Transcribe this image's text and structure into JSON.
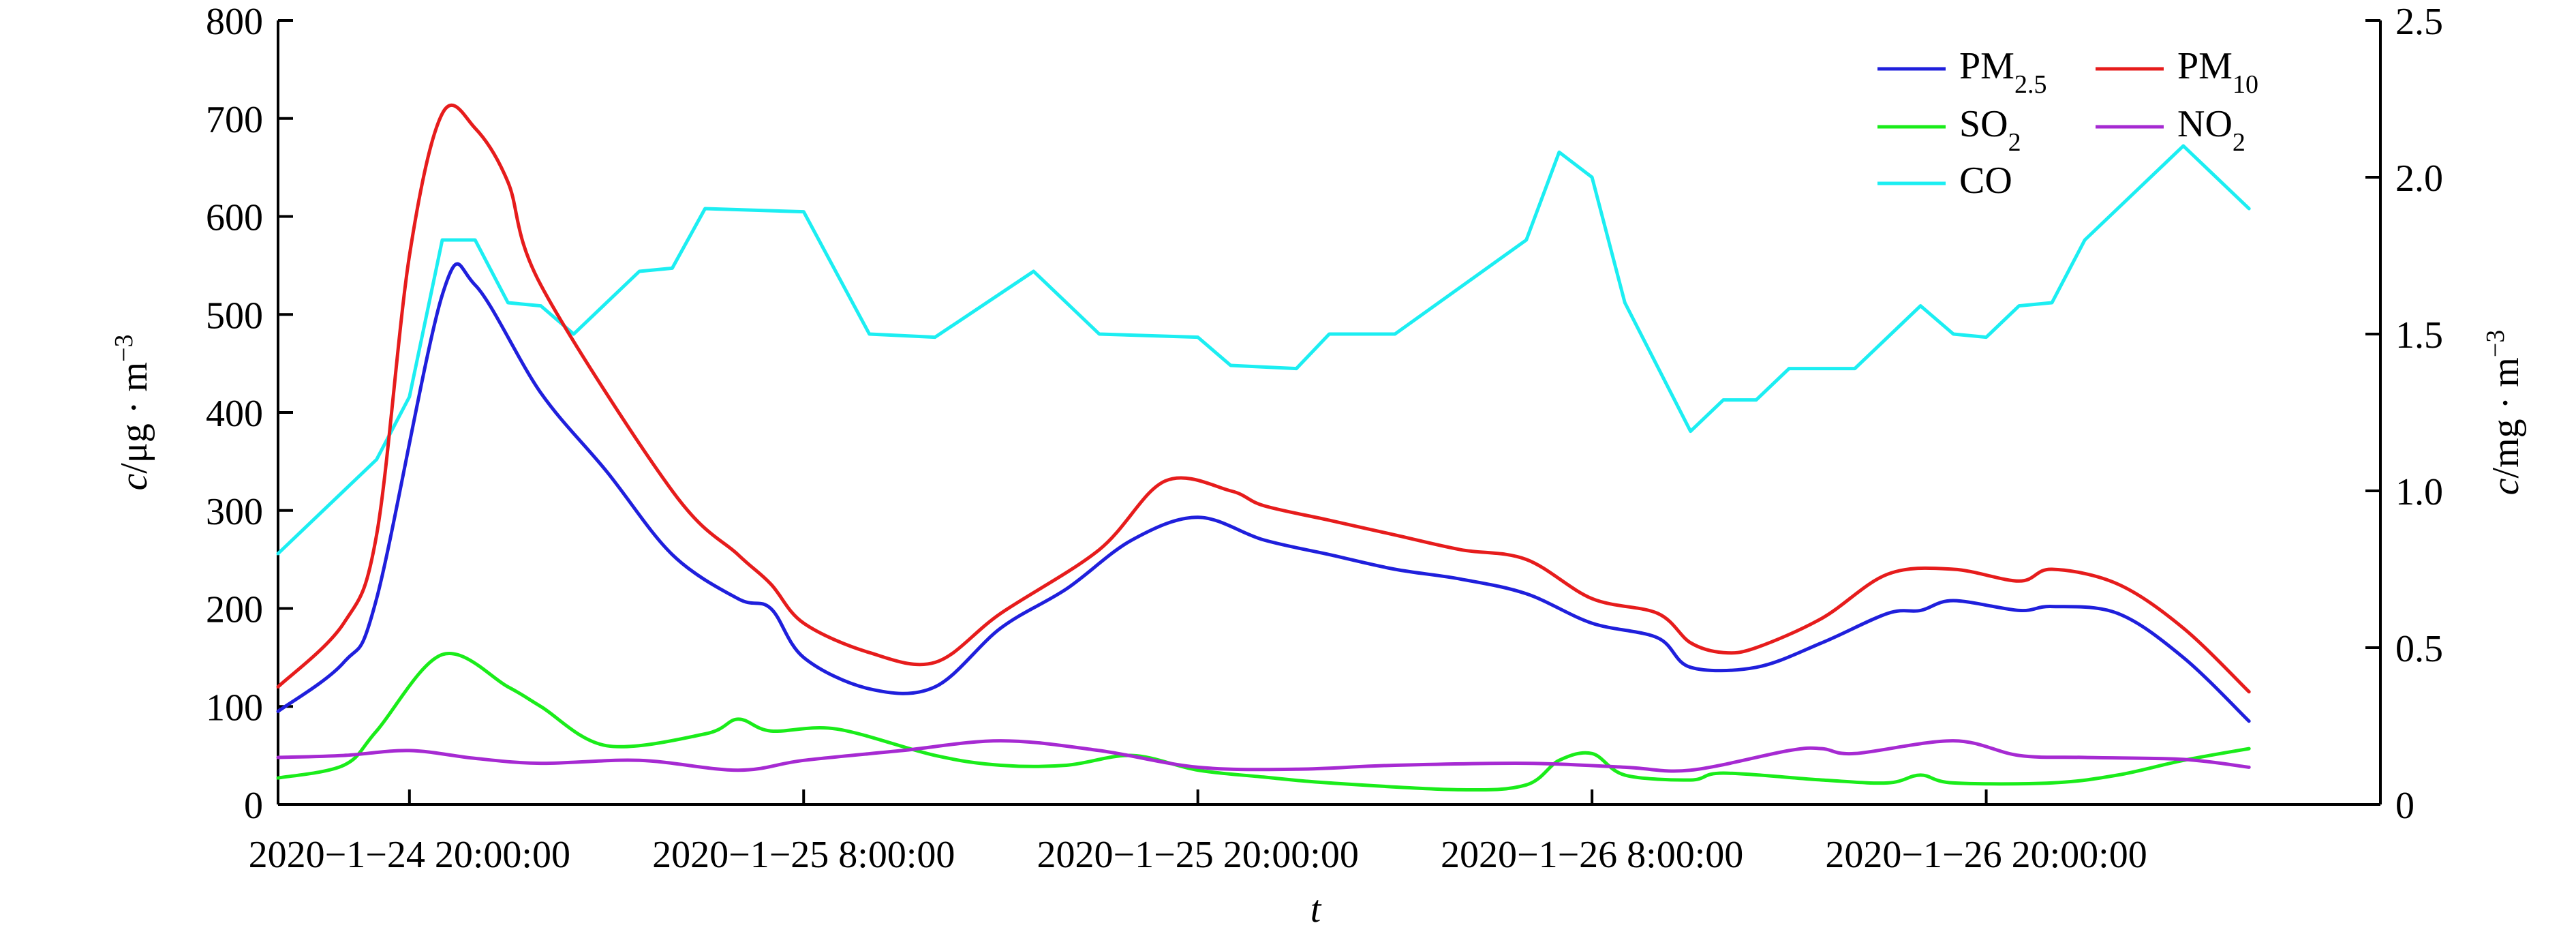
{
  "chart_data": {
    "type": "line",
    "title": "",
    "xlabel": "t",
    "ylabel_left": {
      "prefix": "c",
      "unit": "/μg · m",
      "exp": "−3"
    },
    "ylabel_right": {
      "prefix": "c",
      "unit": "/mg · m",
      "exp": "−3"
    },
    "x_ticks": [
      "2020−1−24 20:00:00",
      "2020−1−25 8:00:00",
      "2020−1−25 20:00:00",
      "2020−1−26 8:00:00",
      "2020−1−26 20:00:00"
    ],
    "x_start": "2020-01-24 16:00:00",
    "x_end": "2020-01-27 08:00:00",
    "left_ylim": [
      0,
      800
    ],
    "left_yticks": [
      "0",
      "100",
      "200",
      "300",
      "400",
      "500",
      "600",
      "700",
      "800"
    ],
    "right_ylim": [
      0,
      2.5
    ],
    "right_yticks": [
      "0",
      "0.5",
      "1.0",
      "1.5",
      "2.0",
      "2.5"
    ],
    "grid": false,
    "legend_position": "top-right",
    "series": [
      {
        "name": "PM2.5",
        "label": "PM",
        "sub": "2.5",
        "color": "#1f1fdc",
        "axis": "left",
        "points": [
          [
            "2020-01-24 16:00",
            95
          ],
          [
            "2020-01-24 18:00",
            145
          ],
          [
            "2020-01-24 19:00",
            210
          ],
          [
            "2020-01-24 21:00",
            520
          ],
          [
            "2020-01-24 22:00",
            530
          ],
          [
            "2020-01-25 00:00",
            420
          ],
          [
            "2020-01-25 02:00",
            340
          ],
          [
            "2020-01-25 04:00",
            255
          ],
          [
            "2020-01-25 06:00",
            210
          ],
          [
            "2020-01-25 07:00",
            200
          ],
          [
            "2020-01-25 08:00",
            150
          ],
          [
            "2020-01-25 10:00",
            118
          ],
          [
            "2020-01-25 12:00",
            120
          ],
          [
            "2020-01-25 14:00",
            180
          ],
          [
            "2020-01-25 16:00",
            220
          ],
          [
            "2020-01-25 18:00",
            270
          ],
          [
            "2020-01-25 20:00",
            293
          ],
          [
            "2020-01-25 22:00",
            270
          ],
          [
            "2020-01-26 00:00",
            255
          ],
          [
            "2020-01-26 02:00",
            240
          ],
          [
            "2020-01-26 04:00",
            230
          ],
          [
            "2020-01-26 06:00",
            215
          ],
          [
            "2020-01-26 08:00",
            185
          ],
          [
            "2020-01-26 10:00",
            170
          ],
          [
            "2020-01-26 11:00",
            140
          ],
          [
            "2020-01-26 13:00",
            140
          ],
          [
            "2020-01-26 15:00",
            165
          ],
          [
            "2020-01-26 17:00",
            195
          ],
          [
            "2020-01-26 18:00",
            198
          ],
          [
            "2020-01-26 19:00",
            208
          ],
          [
            "2020-01-26 21:00",
            198
          ],
          [
            "2020-01-26 22:00",
            202
          ],
          [
            "2020-01-27 00:00",
            195
          ],
          [
            "2020-01-27 02:00",
            150
          ],
          [
            "2020-01-27 04:00",
            85
          ]
        ]
      },
      {
        "name": "PM10",
        "label": "PM",
        "sub": "10",
        "color": "#e61c1c",
        "axis": "left",
        "points": [
          [
            "2020-01-24 16:00",
            120
          ],
          [
            "2020-01-24 18:00",
            185
          ],
          [
            "2020-01-24 19:00",
            275
          ],
          [
            "2020-01-24 20:00",
            560
          ],
          [
            "2020-01-24 21:00",
            705
          ],
          [
            "2020-01-24 22:00",
            690
          ],
          [
            "2020-01-24 23:00",
            635
          ],
          [
            "2020-01-25 00:00",
            530
          ],
          [
            "2020-01-25 04:00",
            320
          ],
          [
            "2020-01-25 06:00",
            255
          ],
          [
            "2020-01-25 07:00",
            225
          ],
          [
            "2020-01-25 08:00",
            185
          ],
          [
            "2020-01-25 10:00",
            155
          ],
          [
            "2020-01-25 12:00",
            145
          ],
          [
            "2020-01-25 14:00",
            195
          ],
          [
            "2020-01-25 17:00",
            260
          ],
          [
            "2020-01-25 19:00",
            330
          ],
          [
            "2020-01-25 21:00",
            320
          ],
          [
            "2020-01-25 22:00",
            305
          ],
          [
            "2020-01-26 00:00",
            290
          ],
          [
            "2020-01-26 02:00",
            275
          ],
          [
            "2020-01-26 04:00",
            260
          ],
          [
            "2020-01-26 06:00",
            250
          ],
          [
            "2020-01-26 08:00",
            210
          ],
          [
            "2020-01-26 10:00",
            195
          ],
          [
            "2020-01-26 11:00",
            165
          ],
          [
            "2020-01-26 12:00",
            155
          ],
          [
            "2020-01-26 13:00",
            160
          ],
          [
            "2020-01-26 15:00",
            190
          ],
          [
            "2020-01-26 17:00",
            235
          ],
          [
            "2020-01-26 19:00",
            240
          ],
          [
            "2020-01-26 21:00",
            228
          ],
          [
            "2020-01-26 22:00",
            240
          ],
          [
            "2020-01-27 00:00",
            225
          ],
          [
            "2020-01-27 02:00",
            180
          ],
          [
            "2020-01-27 04:00",
            115
          ]
        ]
      },
      {
        "name": "SO2",
        "label": "SO",
        "sub": "2",
        "color": "#1aec1a",
        "axis": "left",
        "points": [
          [
            "2020-01-24 16:00",
            27
          ],
          [
            "2020-01-24 18:00",
            40
          ],
          [
            "2020-01-24 19:00",
            75
          ],
          [
            "2020-01-24 21:00",
            153
          ],
          [
            "2020-01-24 23:00",
            120
          ],
          [
            "2020-01-25 00:00",
            100
          ],
          [
            "2020-01-25 02:00",
            60
          ],
          [
            "2020-01-25 05:00",
            72
          ],
          [
            "2020-01-25 06:00",
            87
          ],
          [
            "2020-01-25 07:00",
            75
          ],
          [
            "2020-01-25 09:00",
            77
          ],
          [
            "2020-01-25 12:00",
            50
          ],
          [
            "2020-01-25 14:00",
            40
          ],
          [
            "2020-01-25 16:00",
            40
          ],
          [
            "2020-01-25 18:00",
            50
          ],
          [
            "2020-01-25 20:00",
            35
          ],
          [
            "2020-01-25 22:00",
            28
          ],
          [
            "2020-01-26 00:00",
            22
          ],
          [
            "2020-01-26 04:00",
            15
          ],
          [
            "2020-01-26 06:00",
            20
          ],
          [
            "2020-01-26 07:00",
            45
          ],
          [
            "2020-01-26 08:00",
            52
          ],
          [
            "2020-01-26 09:00",
            30
          ],
          [
            "2020-01-26 11:00",
            25
          ],
          [
            "2020-01-26 12:00",
            32
          ],
          [
            "2020-01-26 15:00",
            25
          ],
          [
            "2020-01-26 17:00",
            22
          ],
          [
            "2020-01-26 18:00",
            30
          ],
          [
            "2020-01-26 19:00",
            22
          ],
          [
            "2020-01-26 22:00",
            22
          ],
          [
            "2020-01-27 00:00",
            30
          ],
          [
            "2020-01-27 02:00",
            45
          ],
          [
            "2020-01-27 04:00",
            57
          ]
        ]
      },
      {
        "name": "NO2",
        "label": "NO",
        "sub": "2",
        "color": "#a62ad2",
        "axis": "left",
        "points": [
          [
            "2020-01-24 16:00",
            48
          ],
          [
            "2020-01-24 18:00",
            50
          ],
          [
            "2020-01-24 20:00",
            55
          ],
          [
            "2020-01-24 22:00",
            47
          ],
          [
            "2020-01-25 00:00",
            42
          ],
          [
            "2020-01-25 03:00",
            45
          ],
          [
            "2020-01-25 06:00",
            35
          ],
          [
            "2020-01-25 08:00",
            45
          ],
          [
            "2020-01-25 11:00",
            55
          ],
          [
            "2020-01-25 14:00",
            65
          ],
          [
            "2020-01-25 17:00",
            55
          ],
          [
            "2020-01-25 20:00",
            38
          ],
          [
            "2020-01-25 23:00",
            36
          ],
          [
            "2020-01-26 02:00",
            40
          ],
          [
            "2020-01-26 06:00",
            42
          ],
          [
            "2020-01-26 09:00",
            38
          ],
          [
            "2020-01-26 11:00",
            35
          ],
          [
            "2020-01-26 14:00",
            55
          ],
          [
            "2020-01-26 15:00",
            57
          ],
          [
            "2020-01-26 16:00",
            52
          ],
          [
            "2020-01-26 19:00",
            65
          ],
          [
            "2020-01-26 21:00",
            50
          ],
          [
            "2020-01-26 23:00",
            48
          ],
          [
            "2020-01-27 02:00",
            46
          ],
          [
            "2020-01-27 04:00",
            38
          ]
        ]
      },
      {
        "name": "CO",
        "label": "CO",
        "sub": "",
        "color": "#1ceef2",
        "axis": "right",
        "points": [
          [
            "2020-01-24 16:00",
            0.8
          ],
          [
            "2020-01-24 19:00",
            1.1
          ],
          [
            "2020-01-24 20:00",
            1.3
          ],
          [
            "2020-01-24 21:00",
            1.8
          ],
          [
            "2020-01-24 22:00",
            1.8
          ],
          [
            "2020-01-24 23:00",
            1.6
          ],
          [
            "2020-01-25 00:00",
            1.59
          ],
          [
            "2020-01-25 01:00",
            1.5
          ],
          [
            "2020-01-25 03:00",
            1.7
          ],
          [
            "2020-01-25 04:00",
            1.71
          ],
          [
            "2020-01-25 05:00",
            1.9
          ],
          [
            "2020-01-25 08:00",
            1.89
          ],
          [
            "2020-01-25 10:00",
            1.5
          ],
          [
            "2020-01-25 12:00",
            1.49
          ],
          [
            "2020-01-25 15:00",
            1.7
          ],
          [
            "2020-01-25 17:00",
            1.5
          ],
          [
            "2020-01-25 20:00",
            1.49
          ],
          [
            "2020-01-25 21:00",
            1.4
          ],
          [
            "2020-01-25 23:00",
            1.39
          ],
          [
            "2020-01-26 00:00",
            1.5
          ],
          [
            "2020-01-26 02:00",
            1.5
          ],
          [
            "2020-01-26 06:00",
            1.8
          ],
          [
            "2020-01-26 07:00",
            2.08
          ],
          [
            "2020-01-26 08:00",
            2.0
          ],
          [
            "2020-01-26 09:00",
            1.6
          ],
          [
            "2020-01-26 11:00",
            1.19
          ],
          [
            "2020-01-26 12:00",
            1.29
          ],
          [
            "2020-01-26 13:00",
            1.29
          ],
          [
            "2020-01-26 14:00",
            1.39
          ],
          [
            "2020-01-26 16:00",
            1.39
          ],
          [
            "2020-01-26 18:00",
            1.59
          ],
          [
            "2020-01-26 19:00",
            1.5
          ],
          [
            "2020-01-26 20:00",
            1.49
          ],
          [
            "2020-01-26 21:00",
            1.59
          ],
          [
            "2020-01-26 22:00",
            1.6
          ],
          [
            "2020-01-26 23:00",
            1.8
          ],
          [
            "2020-01-27 00:00",
            1.9
          ],
          [
            "2020-01-27 02:00",
            2.1
          ],
          [
            "2020-01-27 04:00",
            1.9
          ]
        ]
      }
    ]
  }
}
